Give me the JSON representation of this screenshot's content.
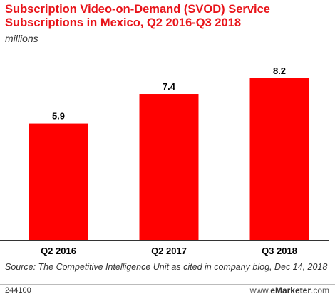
{
  "header": {
    "title": "Subscription Video-on-Demand (SVOD) Service Subscriptions in Mexico, Q2 2016-Q3 2018",
    "subtitle": "millions"
  },
  "colors": {
    "bar": "#ff0000",
    "title": "#e8141a",
    "text": "#000000"
  },
  "chart_data": {
    "type": "bar",
    "title": "Subscription Video-on-Demand (SVOD) Service Subscriptions in Mexico, Q2 2016-Q3 2018",
    "subtitle": "millions",
    "xlabel": "",
    "ylabel": "",
    "categories": [
      "Q2 2016",
      "Q2 2017",
      "Q3 2018"
    ],
    "values": [
      5.9,
      7.4,
      8.2
    ],
    "value_labels": [
      "5.9",
      "7.4",
      "8.2"
    ],
    "ylim": [
      0,
      10
    ],
    "grid": false,
    "legend": "none"
  },
  "footer": {
    "source": "Source: The Competitive Intelligence Unit as cited in company blog, Dec 14, 2018",
    "chart_id": "244100",
    "brand_prefix": "www.",
    "brand_name": "eMarketer",
    "brand_suffix": ".com"
  }
}
